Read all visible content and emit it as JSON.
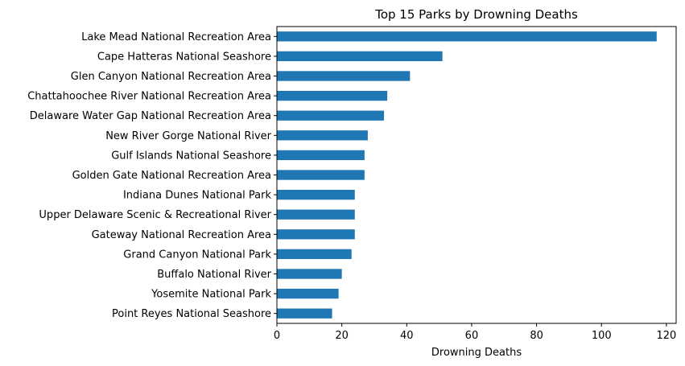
{
  "chart_data": {
    "type": "bar",
    "orientation": "horizontal",
    "title": "Top 15 Parks by Drowning Deaths",
    "xlabel": "Drowning Deaths",
    "ylabel": "",
    "xlim": [
      0,
      123
    ],
    "xticks": [
      0,
      20,
      40,
      60,
      80,
      100,
      120
    ],
    "grid": false,
    "legend": "none",
    "bar_color": "#1f77b4",
    "categories": [
      "Lake Mead National Recreation Area",
      "Cape Hatteras National Seashore",
      "Glen Canyon National Recreation Area",
      "Chattahoochee River National Recreation Area",
      "Delaware Water Gap National Recreation Area",
      "New River Gorge National River",
      "Gulf Islands National Seashore",
      "Golden Gate National Recreation Area",
      "Indiana Dunes National Park",
      "Upper Delaware Scenic & Recreational River",
      "Gateway National Recreation Area",
      "Grand Canyon National Park",
      "Buffalo National River",
      "Yosemite National Park",
      "Point Reyes National Seashore"
    ],
    "values": [
      117,
      51,
      41,
      34,
      33,
      28,
      27,
      27,
      24,
      24,
      24,
      23,
      20,
      19,
      17
    ]
  }
}
